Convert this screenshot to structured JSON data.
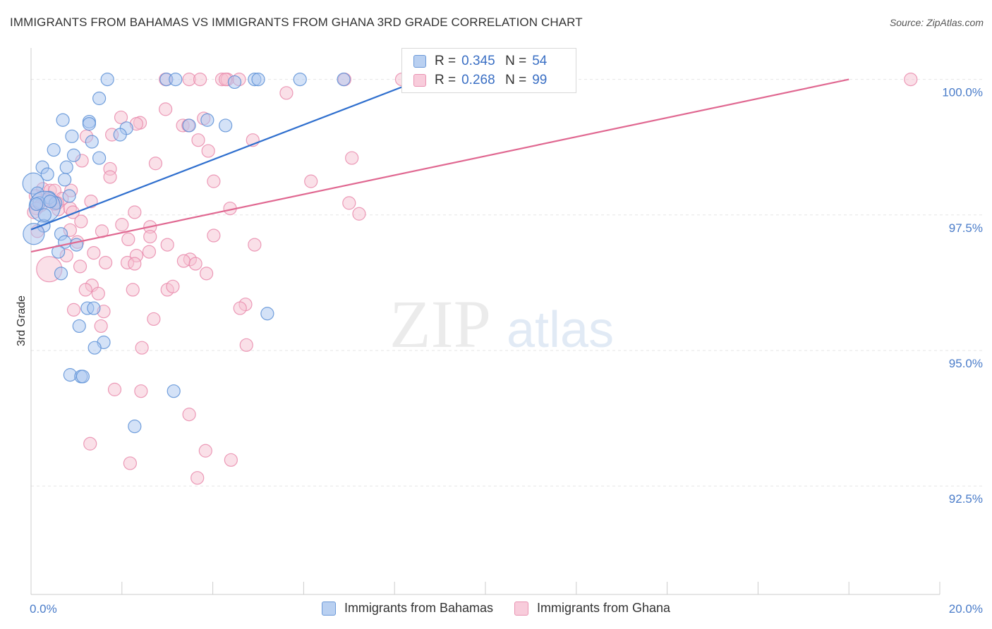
{
  "header": {
    "title": "IMMIGRANTS FROM BAHAMAS VS IMMIGRANTS FROM GHANA 3RD GRADE CORRELATION CHART",
    "source": "Source: ZipAtlas.com"
  },
  "watermark": {
    "zip": "ZIP",
    "atlas": "atlas"
  },
  "legend": {
    "r_label": "R =",
    "n_label": "N =",
    "rows": [
      {
        "r": "0.345",
        "n": "54"
      },
      {
        "r": "0.268",
        "n": "99"
      }
    ]
  },
  "chart_data": {
    "type": "scatter",
    "title": "IMMIGRANTS FROM BAHAMAS VS IMMIGRANTS FROM GHANA 3RD GRADE CORRELATION CHART",
    "xlabel": "",
    "ylabel": "3rd Grade",
    "xlim": [
      0,
      20
    ],
    "ylim": [
      90.5,
      100.45
    ],
    "x_tick_labels": [
      {
        "value": 0,
        "label": "0.0%"
      },
      {
        "value": 20,
        "label": "20.0%"
      }
    ],
    "y_tick_labels": [
      {
        "value": 100,
        "label": "100.0%"
      },
      {
        "value": 97.5,
        "label": "97.5%"
      },
      {
        "value": 95,
        "label": "95.0%"
      },
      {
        "value": 92.5,
        "label": "92.5%"
      }
    ],
    "colors": {
      "bahamas_fill": "#a9c6ef",
      "bahamas_stroke": "#5b8fd6",
      "bahamas_line": "#2f6fce",
      "ghana_fill": "#f6c1d2",
      "ghana_stroke": "#e98aab",
      "ghana_line": "#e06891",
      "tick": "#4a7cc9",
      "grid": "#e6e6e6"
    },
    "series": [
      {
        "name": "Immigrants from Bahamas",
        "r": 0.345,
        "n": 54,
        "trend": {
          "x": [
            0,
            8.6
          ],
          "y": [
            97.23,
            100.0
          ]
        },
        "points": [
          [
            1.68,
            100.0
          ],
          [
            2.98,
            100.0
          ],
          [
            3.18,
            100.0
          ],
          [
            4.48,
            99.95
          ],
          [
            4.92,
            100.0
          ],
          [
            5.0,
            100.0
          ],
          [
            5.92,
            100.0
          ],
          [
            6.88,
            100.0
          ],
          [
            1.5,
            99.65
          ],
          [
            0.7,
            99.25
          ],
          [
            1.28,
            99.22
          ],
          [
            1.28,
            99.18
          ],
          [
            3.48,
            99.15
          ],
          [
            4.28,
            99.15
          ],
          [
            3.88,
            99.25
          ],
          [
            0.9,
            98.95
          ],
          [
            1.34,
            98.85
          ],
          [
            0.5,
            98.7
          ],
          [
            0.94,
            98.6
          ],
          [
            1.5,
            98.55
          ],
          [
            0.25,
            98.38
          ],
          [
            0.78,
            98.38
          ],
          [
            0.36,
            98.25
          ],
          [
            0.74,
            98.15
          ],
          [
            0.05,
            98.08
          ],
          [
            0.14,
            97.9
          ],
          [
            0.84,
            97.85
          ],
          [
            0.4,
            97.82
          ],
          [
            0.18,
            97.72
          ],
          [
            0.54,
            97.72
          ],
          [
            0.3,
            97.65
          ],
          [
            0.42,
            97.75
          ],
          [
            0.28,
            97.3
          ],
          [
            0.66,
            97.15
          ],
          [
            0.74,
            97.0
          ],
          [
            1.0,
            96.95
          ],
          [
            0.6,
            96.82
          ],
          [
            0.66,
            96.42
          ],
          [
            0.06,
            97.15
          ],
          [
            1.24,
            95.78
          ],
          [
            1.38,
            95.78
          ],
          [
            5.2,
            95.68
          ],
          [
            1.06,
            95.45
          ],
          [
            1.6,
            95.15
          ],
          [
            1.4,
            95.05
          ],
          [
            0.86,
            94.55
          ],
          [
            1.1,
            94.52
          ],
          [
            1.14,
            94.52
          ],
          [
            3.14,
            94.25
          ],
          [
            2.28,
            93.6
          ],
          [
            0.3,
            97.5
          ],
          [
            0.12,
            97.7
          ],
          [
            2.1,
            99.1
          ],
          [
            1.96,
            98.98
          ]
        ],
        "sizes": {
          "30": 22,
          "24": 15,
          "38": 15
        }
      },
      {
        "name": "Immigrants from Ghana",
        "r": 0.268,
        "n": 99,
        "trend": {
          "x": [
            0,
            18.0
          ],
          "y": [
            96.82,
            100.0
          ]
        },
        "points": [
          [
            2.96,
            100.0
          ],
          [
            3.48,
            100.0
          ],
          [
            3.72,
            100.0
          ],
          [
            4.2,
            100.0
          ],
          [
            4.32,
            100.0
          ],
          [
            4.28,
            100.0
          ],
          [
            4.58,
            100.0
          ],
          [
            6.9,
            100.0
          ],
          [
            8.16,
            100.0
          ],
          [
            8.66,
            100.0
          ],
          [
            9.1,
            100.0
          ],
          [
            19.36,
            100.0
          ],
          [
            5.62,
            99.75
          ],
          [
            2.96,
            99.45
          ],
          [
            3.8,
            99.28
          ],
          [
            1.98,
            99.3
          ],
          [
            2.4,
            99.2
          ],
          [
            2.32,
            99.18
          ],
          [
            3.34,
            99.15
          ],
          [
            3.46,
            99.15
          ],
          [
            1.22,
            98.95
          ],
          [
            1.78,
            98.98
          ],
          [
            3.68,
            98.88
          ],
          [
            4.88,
            98.88
          ],
          [
            3.9,
            98.68
          ],
          [
            7.06,
            98.55
          ],
          [
            1.12,
            98.5
          ],
          [
            2.74,
            98.45
          ],
          [
            1.74,
            98.35
          ],
          [
            1.74,
            98.2
          ],
          [
            4.02,
            98.12
          ],
          [
            6.16,
            98.12
          ],
          [
            0.26,
            97.98
          ],
          [
            0.42,
            97.95
          ],
          [
            0.52,
            97.95
          ],
          [
            0.88,
            97.95
          ],
          [
            0.1,
            97.85
          ],
          [
            0.68,
            97.8
          ],
          [
            1.32,
            97.75
          ],
          [
            7.0,
            97.72
          ],
          [
            0.52,
            97.7
          ],
          [
            0.22,
            97.68
          ],
          [
            0.12,
            97.62
          ],
          [
            0.6,
            97.6
          ],
          [
            0.86,
            97.62
          ],
          [
            0.92,
            97.55
          ],
          [
            2.28,
            97.55
          ],
          [
            4.38,
            97.62
          ],
          [
            7.22,
            97.52
          ],
          [
            0.06,
            97.55
          ],
          [
            1.1,
            97.38
          ],
          [
            2.0,
            97.32
          ],
          [
            0.86,
            97.22
          ],
          [
            1.56,
            97.2
          ],
          [
            2.62,
            97.28
          ],
          [
            0.14,
            97.2
          ],
          [
            2.14,
            97.05
          ],
          [
            2.62,
            97.1
          ],
          [
            4.02,
            97.12
          ],
          [
            3.0,
            96.95
          ],
          [
            1.02,
            97.0
          ],
          [
            1.38,
            96.8
          ],
          [
            0.78,
            96.75
          ],
          [
            2.32,
            96.75
          ],
          [
            2.6,
            96.82
          ],
          [
            4.92,
            96.95
          ],
          [
            3.5,
            96.68
          ],
          [
            3.36,
            96.65
          ],
          [
            1.64,
            96.62
          ],
          [
            2.12,
            96.62
          ],
          [
            3.62,
            96.6
          ],
          [
            2.28,
            96.6
          ],
          [
            1.08,
            96.55
          ],
          [
            0.4,
            96.5
          ],
          [
            3.86,
            96.42
          ],
          [
            1.34,
            96.2
          ],
          [
            2.24,
            96.12
          ],
          [
            3.0,
            96.12
          ],
          [
            3.12,
            96.18
          ],
          [
            1.2,
            96.12
          ],
          [
            1.48,
            96.05
          ],
          [
            4.72,
            95.85
          ],
          [
            4.6,
            95.78
          ],
          [
            0.94,
            95.75
          ],
          [
            1.6,
            95.72
          ],
          [
            2.7,
            95.58
          ],
          [
            1.54,
            95.45
          ],
          [
            4.74,
            95.1
          ],
          [
            2.44,
            95.05
          ],
          [
            1.84,
            94.28
          ],
          [
            2.42,
            94.25
          ],
          [
            3.48,
            93.82
          ],
          [
            1.3,
            93.28
          ],
          [
            3.84,
            93.15
          ],
          [
            2.18,
            92.92
          ],
          [
            4.4,
            92.98
          ],
          [
            3.66,
            92.65
          ],
          [
            0.58,
            97.72
          ],
          [
            0.34,
            97.78
          ]
        ],
        "sizes": {
          "73": 18
        }
      }
    ]
  },
  "bottom_legend": {
    "items": [
      {
        "label": "Immigrants from Bahamas"
      },
      {
        "label": "Immigrants from Ghana"
      }
    ]
  }
}
